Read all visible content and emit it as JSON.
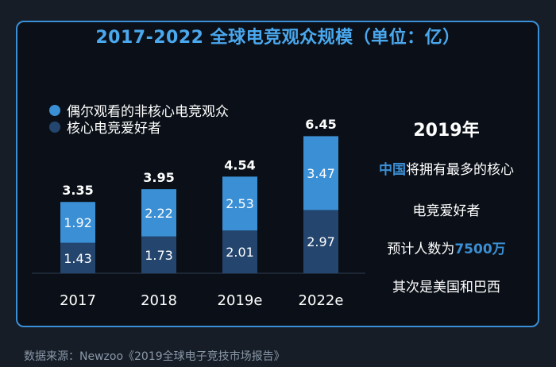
{
  "title": "2017-2022 全球电竞观众规模（单位：亿）",
  "colors": {
    "lower": "#24456e",
    "upper": "#3b8fd4",
    "accent": "#3b8fd4"
  },
  "chart_data": {
    "type": "bar",
    "stacked": true,
    "title": "2017-2022 全球电竞观众规模（单位：亿）",
    "categories": [
      "2017",
      "2018",
      "2019e",
      "2022e"
    ],
    "series": [
      {
        "name": "核心电竞爱好者",
        "values": [
          1.43,
          1.73,
          2.01,
          2.97
        ]
      },
      {
        "name": "偶尔观看的非核心电竞观众",
        "values": [
          1.92,
          2.22,
          2.53,
          3.47
        ]
      }
    ],
    "totals": [
      3.35,
      3.95,
      4.54,
      6.45
    ],
    "total_labels": [
      "3.35",
      "3.95",
      "4.54",
      "6.45"
    ],
    "series_labels": [
      [
        "1.43",
        "1.73",
        "2.01",
        "2.97"
      ],
      [
        "1.92",
        "2.22",
        "2.53",
        "3.47"
      ]
    ],
    "ylim": [
      0,
      7
    ],
    "grid": false,
    "legend_position": "top-left"
  },
  "legend": [
    {
      "label": "偶尔观看的非核心电竞观众",
      "color": "#3b8fd4"
    },
    {
      "label": "核心电竞爱好者",
      "color": "#24456e"
    }
  ],
  "side": {
    "year": "2019年",
    "line1_highlight": "中国",
    "line1_rest": "将拥有最多的核心",
    "line2": "电竞爱好者",
    "line3_prefix": "预计人数为",
    "line3_highlight": "7500万",
    "line4": "其次是美国和巴西"
  },
  "source": "数据来源：Newzoo《2019全球电子竞技市场报告》"
}
